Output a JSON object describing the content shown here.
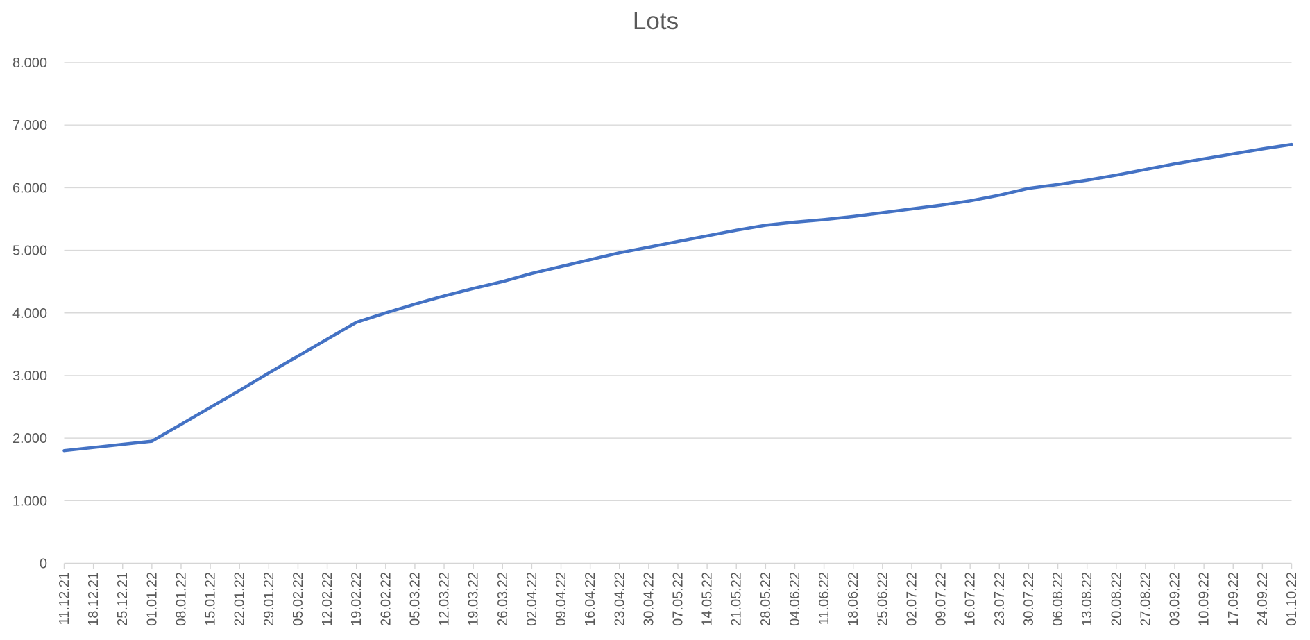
{
  "chart_data": {
    "type": "line",
    "title": "Lots",
    "xlabel": "",
    "ylabel": "",
    "legend": "none",
    "grid": "horizontal",
    "ylim": [
      0,
      8000
    ],
    "y_ticks": [
      0,
      1000,
      2000,
      3000,
      4000,
      5000,
      6000,
      7000,
      8000
    ],
    "y_tick_labels": [
      "0",
      "1.000",
      "2.000",
      "3.000",
      "4.000",
      "5.000",
      "6.000",
      "7.000",
      "8.000"
    ],
    "x_labels": [
      "11.12.21",
      "18.12.21",
      "25.12.21",
      "01.01.22",
      "08.01.22",
      "15.01.22",
      "22.01.22",
      "29.01.22",
      "05.02.22",
      "12.02.22",
      "19.02.22",
      "26.02.22",
      "05.03.22",
      "12.03.22",
      "19.03.22",
      "26.03.22",
      "02.04.22",
      "09.04.22",
      "16.04.22",
      "23.04.22",
      "30.04.22",
      "07.05.22",
      "14.05.22",
      "21.05.22",
      "28.05.22",
      "04.06.22",
      "11.06.22",
      "18.06.22",
      "25.06.22",
      "02.07.22",
      "09.07.22",
      "16.07.22",
      "23.07.22",
      "30.07.22",
      "06.08.22",
      "13.08.22",
      "20.08.22",
      "27.08.22",
      "03.09.22",
      "10.09.22",
      "17.09.22",
      "24.09.22",
      "01.10.22"
    ],
    "series": [
      {
        "name": "Lots",
        "values": [
          1800,
          1850,
          1900,
          1950,
          2220,
          2490,
          2760,
          3040,
          3310,
          3580,
          3850,
          4000,
          4140,
          4270,
          4390,
          4500,
          4630,
          4740,
          4850,
          4960,
          5050,
          5140,
          5230,
          5320,
          5400,
          5450,
          5490,
          5540,
          5600,
          5660,
          5720,
          5790,
          5880,
          5990,
          6050,
          6120,
          6200,
          6290,
          6380,
          6460,
          6540,
          6620,
          6690
        ]
      }
    ]
  },
  "colors": {
    "line": "#4472C4",
    "gridline": "#D9D9D9",
    "axis": "#D5D5D5",
    "text": "#595959",
    "background": "#FFFFFF"
  }
}
